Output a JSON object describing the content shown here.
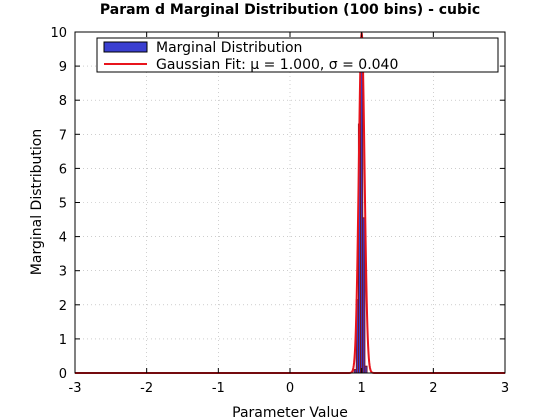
{
  "chart_data": {
    "type": "bar",
    "title": "Param d Marginal Distribution (100 bins) - cubic",
    "xlabel": "Parameter Value",
    "ylabel": "Marginal Distribution",
    "xlim": [
      -3,
      3
    ],
    "ylim": [
      0,
      10
    ],
    "xticks": [
      "-3",
      "-2",
      "-1",
      "0",
      "1",
      "2",
      "3"
    ],
    "yticks": [
      "0",
      "1",
      "2",
      "3",
      "4",
      "5",
      "6",
      "7",
      "8",
      "9",
      "10"
    ],
    "grid": true,
    "legend_position": "top",
    "series": [
      {
        "name": "Marginal Distribution",
        "type": "bar",
        "color": "#3a3fd1",
        "bin_width": 0.03,
        "bins": [
          {
            "x": 0.91,
            "y": 0.1
          },
          {
            "x": 0.94,
            "y": 2.15
          },
          {
            "x": 0.97,
            "y": 7.3
          },
          {
            "x": 1.0,
            "y": 9.4
          },
          {
            "x": 1.03,
            "y": 4.55
          },
          {
            "x": 1.06,
            "y": 0.2
          }
        ]
      },
      {
        "name": "Gaussian Fit: μ = 1.000, σ  = 0.040",
        "type": "line",
        "color": "#e8141c",
        "mu": 1.0,
        "sigma": 0.04
      }
    ]
  }
}
